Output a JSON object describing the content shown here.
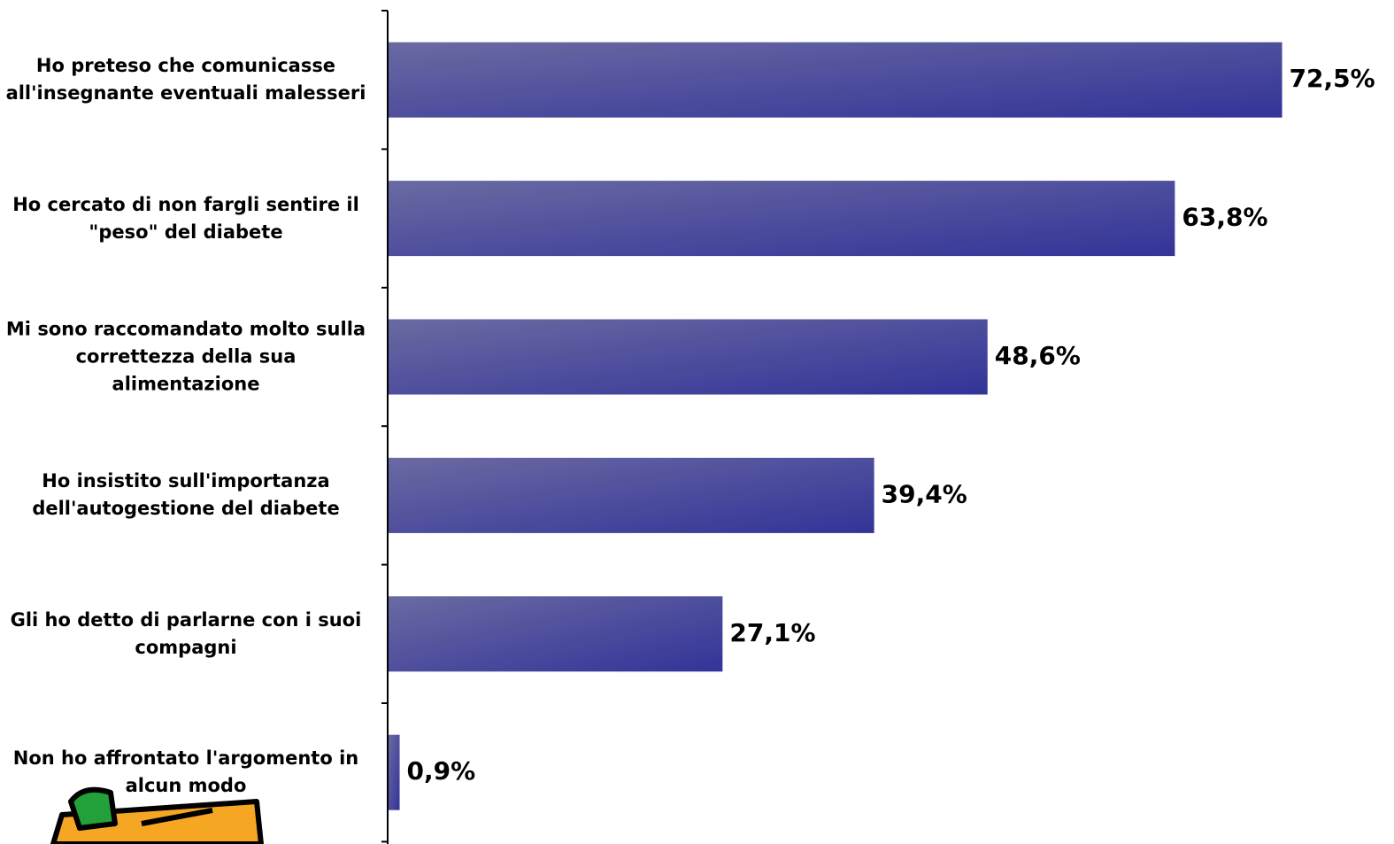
{
  "chart_data": {
    "type": "bar",
    "orientation": "horizontal",
    "categories": [
      "Ho preteso che comunicasse all'insegnante eventuali malesseri",
      "Ho cercato di non fargli sentire il \"peso\" del diabete",
      "Mi sono raccomandato molto sulla correttezza della sua alimentazione",
      "Ho insistito sull'importanza dell'autogestione del diabete",
      "Gli ho detto di parlarne con i suoi compagni",
      "Non ho affrontato l'argomento in alcun modo"
    ],
    "values": [
      72.5,
      63.8,
      48.6,
      39.4,
      27.1,
      0.9
    ],
    "value_labels": [
      "72,5%",
      "63,8%",
      "48,6%",
      "39,4%",
      "27,1%",
      "0,9%"
    ],
    "color": "#333399",
    "xlim": [
      0,
      80
    ]
  }
}
